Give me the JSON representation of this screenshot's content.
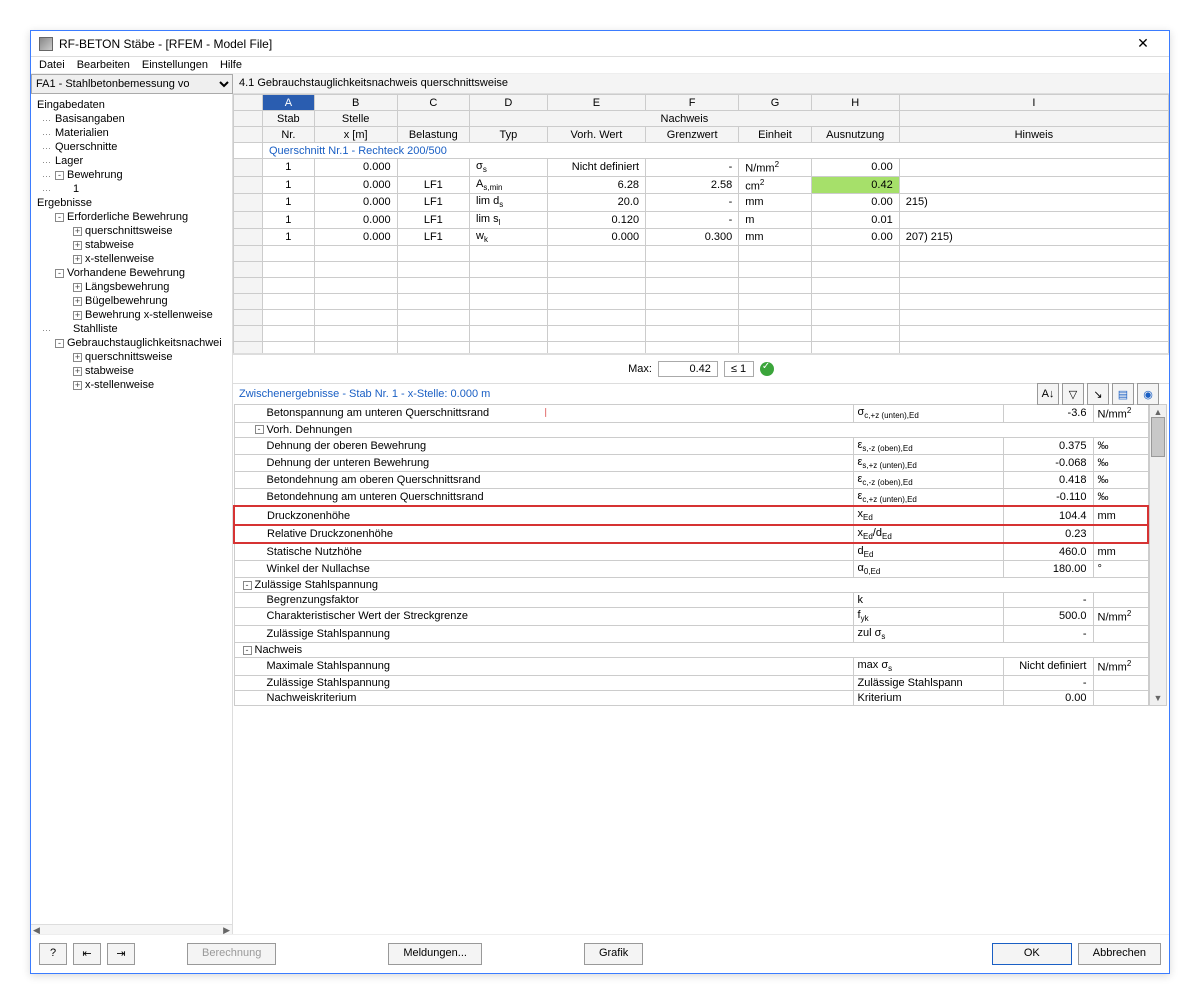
{
  "window": {
    "title": "RF-BETON Stäbe - [RFEM - Model File]"
  },
  "menu": [
    "Datei",
    "Bearbeiten",
    "Einstellungen",
    "Hilfe"
  ],
  "dropdown": "FA1 - Stahlbetonbemessung vo",
  "tree": [
    {
      "lvl": 0,
      "t": "Eingabedaten"
    },
    {
      "lvl": 1,
      "t": "Basisangaben",
      "d": 1
    },
    {
      "lvl": 1,
      "t": "Materialien",
      "d": 1
    },
    {
      "lvl": 1,
      "t": "Querschnitte",
      "d": 1
    },
    {
      "lvl": 1,
      "t": "Lager",
      "d": 1
    },
    {
      "lvl": 1,
      "t": "Bewehrung",
      "d": 1,
      "pm": "-"
    },
    {
      "lvl": 2,
      "t": "1",
      "d": 1
    },
    {
      "lvl": 0,
      "t": "Ergebnisse"
    },
    {
      "lvl": 1,
      "t": "Erforderliche Bewehrung",
      "pm": "-"
    },
    {
      "lvl": 2,
      "t": "querschnittsweise",
      "pm": "+"
    },
    {
      "lvl": 2,
      "t": "stabweise",
      "pm": "+"
    },
    {
      "lvl": 2,
      "t": "x-stellenweise",
      "pm": "+"
    },
    {
      "lvl": 1,
      "t": "Vorhandene Bewehrung",
      "pm": "-"
    },
    {
      "lvl": 2,
      "t": "Längsbewehrung",
      "pm": "+"
    },
    {
      "lvl": 2,
      "t": "Bügelbewehrung",
      "pm": "+"
    },
    {
      "lvl": 2,
      "t": "Bewehrung x-stellenweise",
      "pm": "+"
    },
    {
      "lvl": 2,
      "t": "Stahlliste",
      "d": 1
    },
    {
      "lvl": 1,
      "t": "Gebrauchstauglichkeitsnachwei",
      "pm": "-"
    },
    {
      "lvl": 2,
      "t": "querschnittsweise",
      "pm": "+"
    },
    {
      "lvl": 2,
      "t": "stabweise",
      "pm": "+"
    },
    {
      "lvl": 2,
      "t": "x-stellenweise",
      "pm": "+"
    }
  ],
  "section": "4.1 Gebrauchstauglichkeitsnachweis querschnittsweise",
  "colLetters": [
    "",
    "A",
    "B",
    "C",
    "D",
    "E",
    "F",
    "G",
    "H",
    "I"
  ],
  "header1": [
    "",
    "Stab",
    "Stelle",
    "",
    "",
    "",
    "Nachweis",
    "",
    "",
    ""
  ],
  "header2": [
    "",
    "Nr.",
    "x [m]",
    "Belastung",
    "Typ",
    "Vorh. Wert",
    "Grenzwert",
    "Einheit",
    "Ausnutzung",
    "Hinweis"
  ],
  "qsTitle": "Querschnitt Nr.1  -  Rechteck 200/500",
  "rows": [
    {
      "nr": "1",
      "x": "0.000",
      "bel": "",
      "typ": "σ<sub>s</sub>",
      "vw": "Nicht definiert",
      "gw": "-",
      "einh": "N/mm<sup>2</sup>",
      "aus": "0.00",
      "hin": ""
    },
    {
      "nr": "1",
      "x": "0.000",
      "bel": "LF1",
      "typ": "A<sub>s,min</sub>",
      "vw": "6.28",
      "gw": "2.58",
      "einh": "cm<sup>2</sup>",
      "aus": "0.42",
      "green": true,
      "hin": ""
    },
    {
      "nr": "1",
      "x": "0.000",
      "bel": "LF1",
      "typ": "lim d<sub>s</sub>",
      "vw": "20.0",
      "gw": "-",
      "einh": "mm",
      "aus": "0.00",
      "hin": "215)"
    },
    {
      "nr": "1",
      "x": "0.000",
      "bel": "LF1",
      "typ": "lim s<sub>l</sub>",
      "vw": "0.120",
      "gw": "-",
      "einh": "m",
      "aus": "0.01",
      "hin": ""
    },
    {
      "nr": "1",
      "x": "0.000",
      "bel": "LF1",
      "typ": "w<sub>k</sub>",
      "vw": "0.000",
      "gw": "0.300",
      "einh": "mm",
      "aus": "0.00",
      "hin": "207) 215)"
    }
  ],
  "max": {
    "label": "Max:",
    "val": "0.42",
    "cond": "≤ 1"
  },
  "subTitle": "Zwischenergebnisse -  Stab Nr. 1  -  x-Stelle: 0.000 m",
  "details": [
    {
      "label": "Betonspannung am unteren Querschnittsrand",
      "sym": "σ<sub>c,+z (unten),Ed</sub>",
      "val": "-3.6",
      "unit": "N/mm<sup>2</sup>",
      "ind": 2,
      "mark": 1
    },
    {
      "label": "Vorh. Dehnungen",
      "hdr": 1,
      "pm": "-",
      "ind": 1
    },
    {
      "label": "Dehnung der oberen Bewehrung",
      "sym": "ε<sub>s,-z (oben),Ed</sub>",
      "val": "0.375",
      "unit": "‰",
      "ind": 2
    },
    {
      "label": "Dehnung der unteren Bewehrung",
      "sym": "ε<sub>s,+z (unten),Ed</sub>",
      "val": "-0.068",
      "unit": "‰",
      "ind": 2
    },
    {
      "label": "Betondehnung am oberen Querschnittsrand",
      "sym": "ε<sub>c,-z (oben),Ed</sub>",
      "val": "0.418",
      "unit": "‰",
      "ind": 2
    },
    {
      "label": "Betondehnung am unteren Querschnittsrand",
      "sym": "ε<sub>c,+z (unten),Ed</sub>",
      "val": "-0.110",
      "unit": "‰",
      "ind": 2
    },
    {
      "label": "Druckzonenhöhe",
      "sym": "x<sub>Ed</sub>",
      "val": "104.4",
      "unit": "mm",
      "ind": 2,
      "hl": 1
    },
    {
      "label": "Relative Druckzonenhöhe",
      "sym": "x<sub>Ed</sub>/d<sub>Ed</sub>",
      "val": "0.23",
      "unit": "",
      "ind": 2,
      "hl": 1
    },
    {
      "label": "Statische Nutzhöhe",
      "sym": "d<sub>Ed</sub>",
      "val": "460.0",
      "unit": "mm",
      "ind": 2
    },
    {
      "label": "Winkel der Nullachse",
      "sym": "α<sub>0,Ed</sub>",
      "val": "180.00",
      "unit": "°",
      "ind": 2
    },
    {
      "label": "Zulässige Stahlspannung",
      "hdr": 1,
      "pm": "-",
      "ind": 0
    },
    {
      "label": "Begrenzungsfaktor",
      "sym": "k",
      "val": "-",
      "unit": "",
      "ind": 2
    },
    {
      "label": "Charakteristischer Wert der Streckgrenze",
      "sym": "f<sub>yk</sub>",
      "val": "500.0",
      "unit": "N/mm<sup>2</sup>",
      "ind": 2
    },
    {
      "label": "Zulässige Stahlspannung",
      "sym": "zul σ<sub>s</sub>",
      "val": "-",
      "unit": "",
      "ind": 2
    },
    {
      "label": "Nachweis",
      "hdr": 1,
      "pm": "-",
      "ind": 0
    },
    {
      "label": "Maximale Stahlspannung",
      "sym": "max σ<sub>s</sub>",
      "val": "Nicht definiert",
      "unit": "N/mm<sup>2</sup>",
      "ind": 2
    },
    {
      "label": "Zulässige Stahlspannung",
      "sym": "Zulässige Stahlspann",
      "val": "-",
      "unit": "",
      "ind": 2
    },
    {
      "label": "Nachweiskriterium",
      "sym": "Kriterium",
      "val": "0.00",
      "unit": "",
      "ind": 2
    }
  ],
  "footer": {
    "berechnung": "Berechnung",
    "meldungen": "Meldungen...",
    "grafik": "Grafik",
    "ok": "OK",
    "abbrechen": "Abbrechen"
  },
  "cw": [
    28,
    50,
    80,
    70,
    75,
    95,
    90,
    70,
    85,
    260
  ]
}
